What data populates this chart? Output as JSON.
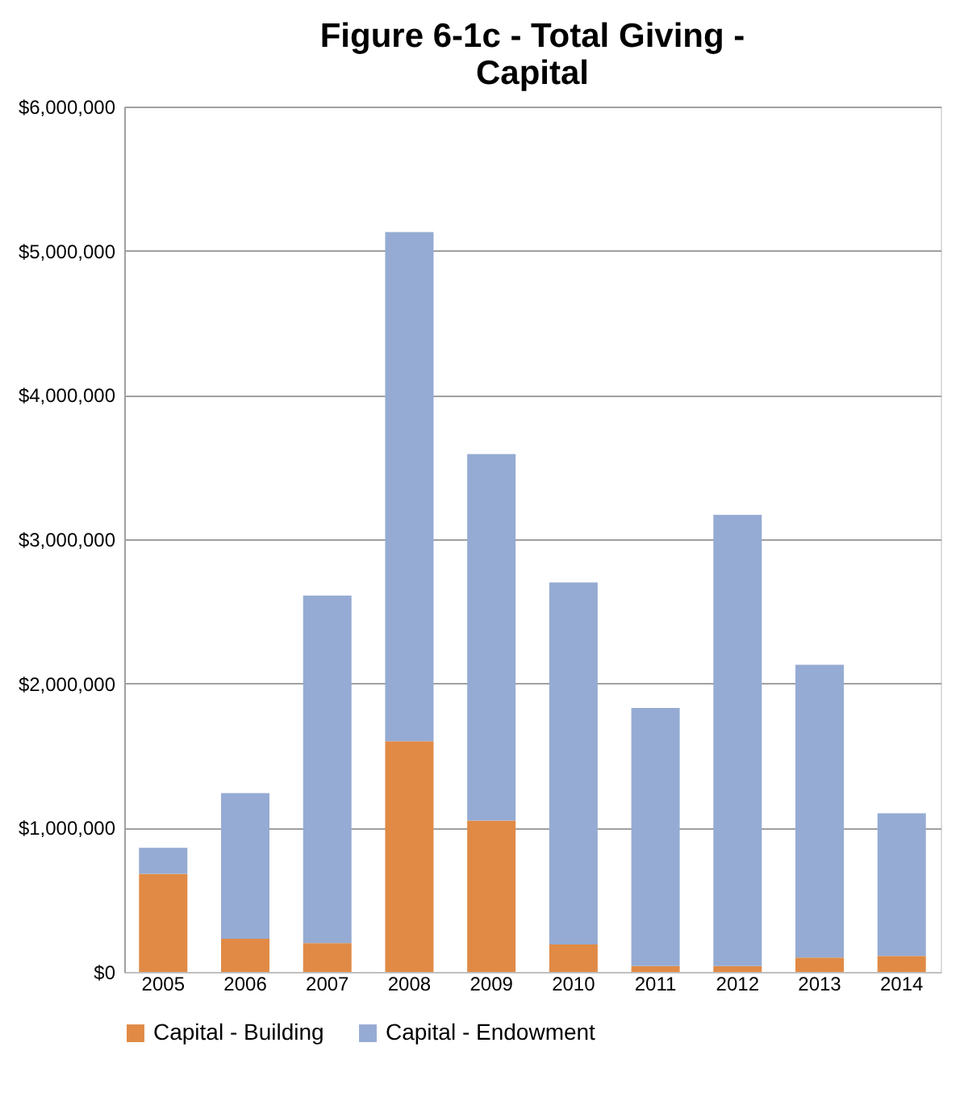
{
  "chart_data": {
    "type": "bar",
    "title": "Figure 6-1c - Total Giving - Capital",
    "stacked": true,
    "categories": [
      "2005",
      "2006",
      "2007",
      "2008",
      "2009",
      "2010",
      "2011",
      "2012",
      "2013",
      "2014"
    ],
    "series": [
      {
        "name": "Capital - Building",
        "color": "#e08a45",
        "values": [
          680000,
          230000,
          200000,
          1600000,
          1050000,
          190000,
          40000,
          40000,
          100000,
          110000
        ]
      },
      {
        "name": "Capital - Endowment",
        "color": "#95abd3",
        "values": [
          180000,
          1010000,
          2410000,
          3530000,
          2540000,
          2510000,
          1790000,
          3130000,
          2030000,
          990000
        ]
      }
    ],
    "ylim": [
      0,
      6000000
    ],
    "yticks": [
      {
        "value": 0,
        "label": "$0"
      },
      {
        "value": 1000000,
        "label": "$1,000,000"
      },
      {
        "value": 2000000,
        "label": "$2,000,000"
      },
      {
        "value": 3000000,
        "label": "$3,000,000"
      },
      {
        "value": 4000000,
        "label": "$4,000,000"
      },
      {
        "value": 5000000,
        "label": "$5,000,000"
      },
      {
        "value": 6000000,
        "label": "$6,000,000"
      }
    ],
    "grid": "y",
    "legend": "bottom"
  }
}
